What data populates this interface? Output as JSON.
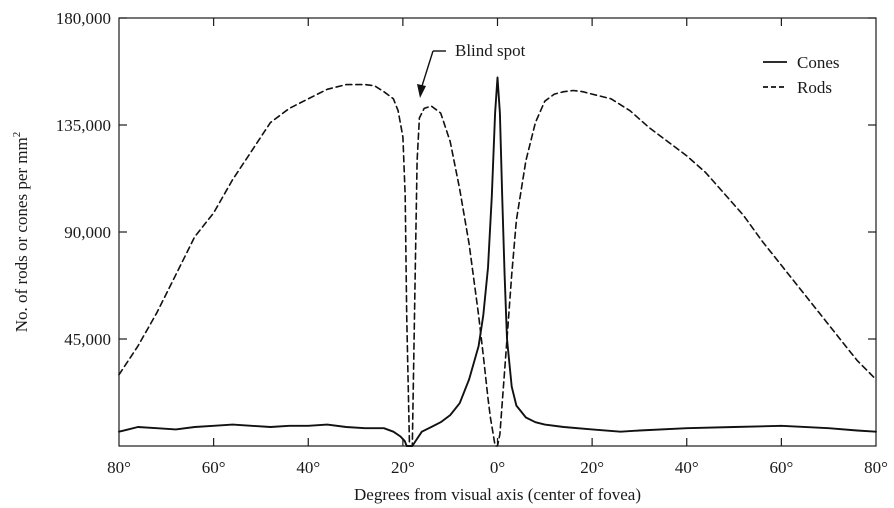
{
  "chart_data": {
    "type": "line",
    "title": "",
    "xlabel": "Degrees from visual axis (center of fovea)",
    "ylabel": "No. of rods or cones per mm",
    "ylabel_superscript": "2",
    "xlim": [
      -80,
      80
    ],
    "ylim": [
      0,
      180000
    ],
    "x_ticks": [
      -80,
      -60,
      -40,
      -20,
      0,
      20,
      40,
      60,
      80
    ],
    "x_tick_labels": [
      "80°",
      "60°",
      "40°",
      "20°",
      "0°",
      "20°",
      "40°",
      "60°",
      "80°"
    ],
    "y_ticks": [
      45000,
      90000,
      135000,
      180000
    ],
    "y_tick_labels": [
      "45,000",
      "90,000",
      "135,000",
      "180,000"
    ],
    "grid": false,
    "legend": {
      "position": "top-right",
      "entries": [
        {
          "label": "Cones",
          "style": "solid"
        },
        {
          "label": "Rods",
          "style": "dashed"
        }
      ]
    },
    "annotations": [
      {
        "text": "Blind spot",
        "x": -18,
        "y": 145000
      }
    ],
    "series": [
      {
        "name": "Cones",
        "style": "solid",
        "color": "#111111",
        "x": [
          -80,
          -76,
          -72,
          -68,
          -64,
          -60,
          -56,
          -52,
          -48,
          -44,
          -40,
          -36,
          -32,
          -28,
          -24,
          -22,
          -20.5,
          -19.6,
          -19.2,
          -18.6,
          -18,
          -17.5,
          -16,
          -14,
          -12,
          -10,
          -8,
          -6,
          -4,
          -3,
          -2,
          -1.2,
          -0.5,
          0,
          0.5,
          1,
          1.5,
          2,
          3,
          4,
          6,
          8,
          10,
          14,
          20,
          26,
          30,
          40,
          50,
          60,
          70,
          76,
          80
        ],
        "y": [
          6000,
          8000,
          7500,
          7000,
          8000,
          8500,
          9000,
          8500,
          8000,
          8500,
          8500,
          9000,
          8000,
          7500,
          7500,
          6000,
          4000,
          2000,
          0,
          0,
          0,
          1500,
          6000,
          8000,
          10000,
          13000,
          18000,
          28000,
          42000,
          55000,
          75000,
          105000,
          140000,
          155000,
          140000,
          105000,
          72000,
          45000,
          25000,
          17000,
          12000,
          10000,
          9000,
          8000,
          7000,
          6000,
          6500,
          7500,
          8000,
          8500,
          7500,
          6500,
          6000
        ]
      },
      {
        "name": "Rods",
        "style": "dashed",
        "color": "#111111",
        "x": [
          -80,
          -76,
          -72,
          -68,
          -64,
          -60,
          -56,
          -52,
          -48,
          -44,
          -40,
          -36,
          -32,
          -28,
          -26,
          -24,
          -22,
          -21,
          -20,
          -19.5,
          -19.2,
          -18.6,
          -18,
          -17.5,
          -17,
          -16.5,
          -15.5,
          -14,
          -12,
          -10,
          -8,
          -6,
          -4,
          -3,
          -2,
          -1.5,
          -1,
          -0.5,
          0,
          0.5,
          1,
          2,
          3,
          4,
          6,
          8,
          10,
          12,
          14,
          16,
          18,
          20,
          24,
          28,
          32,
          36,
          40,
          44,
          48,
          52,
          56,
          60,
          64,
          68,
          72,
          76,
          80
        ],
        "y": [
          30000,
          42000,
          56000,
          72000,
          88000,
          98000,
          112000,
          124000,
          136000,
          142000,
          146000,
          150000,
          152000,
          152000,
          151500,
          149000,
          146000,
          141000,
          130000,
          105000,
          55000,
          0,
          0,
          60000,
          120000,
          138000,
          142000,
          143000,
          140000,
          128000,
          108000,
          85000,
          55000,
          38000,
          20000,
          12000,
          6000,
          0,
          0,
          5000,
          18000,
          45000,
          72000,
          95000,
          120000,
          136000,
          145000,
          148000,
          149000,
          149500,
          149000,
          148000,
          146000,
          141000,
          134000,
          128000,
          122000,
          115000,
          106000,
          97000,
          86000,
          76000,
          66000,
          56000,
          46000,
          36000,
          28000
        ]
      }
    ]
  }
}
